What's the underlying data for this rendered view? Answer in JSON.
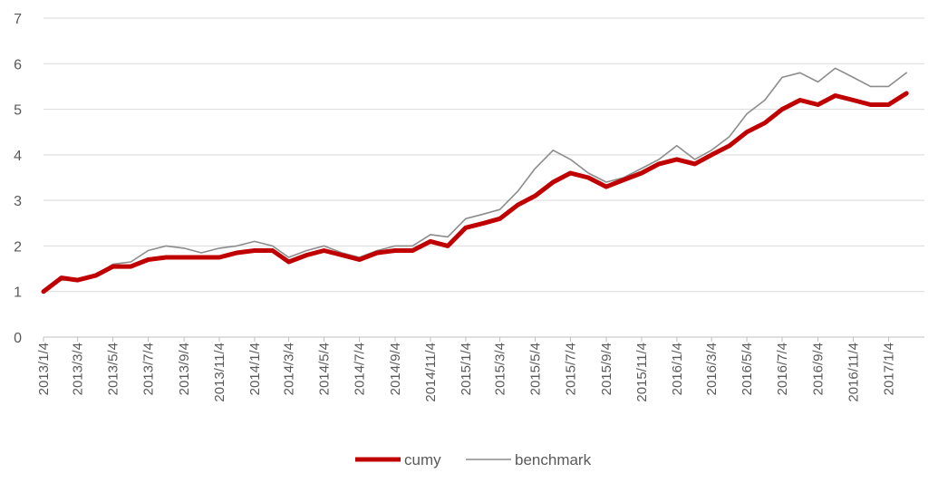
{
  "chart_data": {
    "type": "line",
    "title": "",
    "xlabel": "",
    "ylabel": "",
    "ylim": [
      0,
      7
    ],
    "yticks": [
      0,
      1,
      2,
      3,
      4,
      5,
      6,
      7
    ],
    "grid": "horizontal",
    "legend_position": "bottom",
    "x_tick_labels": [
      "2013/1/4",
      "2013/3/4",
      "2013/5/4",
      "2013/7/4",
      "2013/9/4",
      "2013/11/4",
      "2014/1/4",
      "2014/3/4",
      "2014/5/4",
      "2014/7/4",
      "2014/9/4",
      "2014/11/4",
      "2015/1/4",
      "2015/3/4",
      "2015/5/4",
      "2015/7/4",
      "2015/9/4",
      "2015/11/4",
      "2016/1/4",
      "2016/3/4",
      "2016/5/4",
      "2016/7/4",
      "2016/9/4",
      "2016/11/4",
      "2017/1/4"
    ],
    "x": [
      "2013/1/4",
      "2013/2/4",
      "2013/3/4",
      "2013/4/4",
      "2013/5/4",
      "2013/6/4",
      "2013/7/4",
      "2013/8/4",
      "2013/9/4",
      "2013/10/4",
      "2013/11/4",
      "2013/12/4",
      "2014/1/4",
      "2014/2/4",
      "2014/3/4",
      "2014/4/4",
      "2014/5/4",
      "2014/6/4",
      "2014/7/4",
      "2014/8/4",
      "2014/9/4",
      "2014/10/4",
      "2014/11/4",
      "2014/12/4",
      "2015/1/4",
      "2015/2/4",
      "2015/3/4",
      "2015/4/4",
      "2015/5/4",
      "2015/6/4",
      "2015/7/4",
      "2015/8/4",
      "2015/9/4",
      "2015/10/4",
      "2015/11/4",
      "2015/12/4",
      "2016/1/4",
      "2016/2/4",
      "2016/3/4",
      "2016/4/4",
      "2016/5/4",
      "2016/6/4",
      "2016/7/4",
      "2016/8/4",
      "2016/9/4",
      "2016/10/4",
      "2016/11/4",
      "2016/12/4",
      "2017/1/4",
      "2017/2/4"
    ],
    "series": [
      {
        "name": "cumy",
        "color": "#c00000",
        "values": [
          1.0,
          1.3,
          1.25,
          1.35,
          1.55,
          1.55,
          1.7,
          1.75,
          1.75,
          1.75,
          1.75,
          1.85,
          1.9,
          1.9,
          1.65,
          1.8,
          1.9,
          1.8,
          1.7,
          1.85,
          1.9,
          1.9,
          2.1,
          2.0,
          2.4,
          2.5,
          2.6,
          2.9,
          3.1,
          3.4,
          3.6,
          3.5,
          3.3,
          3.45,
          3.6,
          3.8,
          3.9,
          3.8,
          4.0,
          4.2,
          4.5,
          4.7,
          5.0,
          5.2,
          5.1,
          5.3,
          5.2,
          5.1,
          5.1,
          5.35
        ]
      },
      {
        "name": "benchmark",
        "color": "#8c8c8c",
        "values": [
          1.0,
          1.25,
          1.25,
          1.35,
          1.6,
          1.65,
          1.9,
          2.0,
          1.95,
          1.85,
          1.95,
          2.0,
          2.1,
          2.0,
          1.75,
          1.9,
          2.0,
          1.85,
          1.75,
          1.9,
          2.0,
          2.0,
          2.25,
          2.2,
          2.6,
          2.7,
          2.8,
          3.2,
          3.7,
          4.1,
          3.9,
          3.6,
          3.4,
          3.5,
          3.7,
          3.9,
          4.2,
          3.9,
          4.1,
          4.4,
          4.9,
          5.2,
          5.7,
          5.8,
          5.6,
          5.9,
          5.7,
          5.5,
          5.5,
          5.8
        ]
      }
    ]
  }
}
